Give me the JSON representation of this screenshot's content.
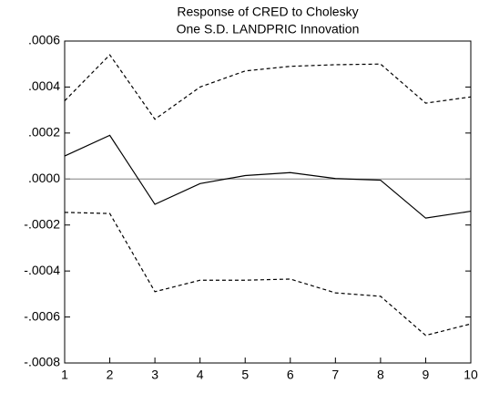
{
  "chart_data": {
    "type": "line",
    "title": [
      "Response of CRED to Cholesky",
      "One S.D. LANDPRIC Innovation"
    ],
    "x": [
      1,
      2,
      3,
      4,
      5,
      6,
      7,
      8,
      9,
      10
    ],
    "xlim": [
      1,
      10
    ],
    "xticks": [
      1,
      2,
      3,
      4,
      5,
      6,
      7,
      8,
      9,
      10
    ],
    "ylim": [
      -0.0008,
      0.0006
    ],
    "yticks": [
      {
        "value": -0.0008,
        "label": "-.0008"
      },
      {
        "value": -0.0006,
        "label": "-.0006"
      },
      {
        "value": -0.0004,
        "label": "-.0004"
      },
      {
        "value": -0.0002,
        "label": "-.0002"
      },
      {
        "value": 0,
        "label": ".0000"
      },
      {
        "value": 0.0002,
        "label": ".0002"
      },
      {
        "value": 0.0004,
        "label": ".0004"
      },
      {
        "value": 0.0006,
        "label": ".0006"
      }
    ],
    "reference_line": 0,
    "reference_color": "#808080",
    "series": [
      {
        "color": "#000000",
        "style": "solid",
        "values": [
          0.0001,
          0.00019,
          -0.00011,
          -2e-05,
          1.5e-05,
          2.8e-05,
          2e-06,
          -5e-06,
          -0.00017,
          -0.00014
        ]
      },
      {
        "color": "#000000",
        "style": "dashed",
        "values": [
          0.00034,
          0.00054,
          0.00026,
          0.0004,
          0.00047,
          0.00049,
          0.000497,
          0.0005,
          0.00033,
          0.000357
        ]
      },
      {
        "color": "#000000",
        "style": "dashed",
        "values": [
          -0.000145,
          -0.00015,
          -0.00049,
          -0.00044,
          -0.00044,
          -0.000435,
          -0.000495,
          -0.00051,
          -0.00068,
          -0.00063
        ]
      }
    ]
  }
}
